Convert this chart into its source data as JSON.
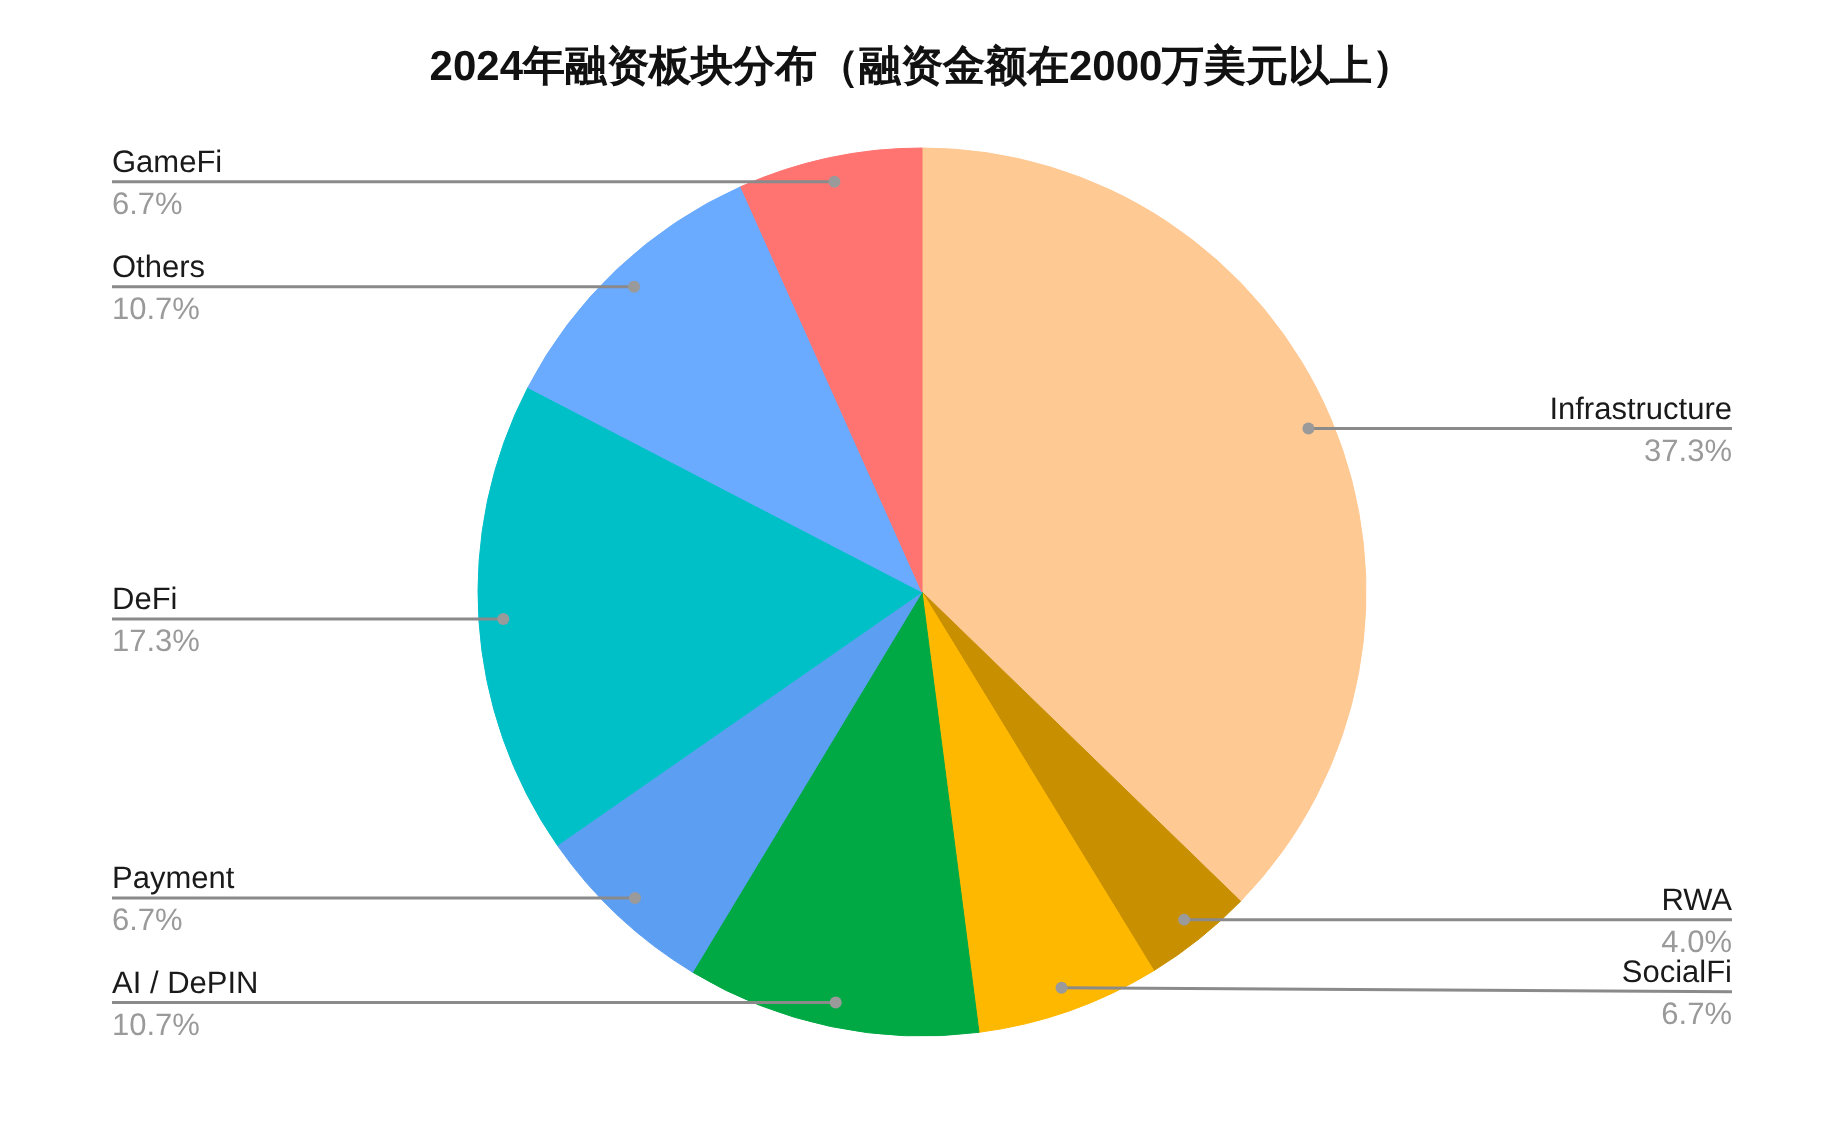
{
  "chart_data": {
    "type": "pie",
    "title": "2024年融资板块分布（融资金额在2000万美元以上）",
    "categories": [
      "Infrastructure",
      "RWA",
      "SocialFi",
      "AI / DePIN",
      "Payment",
      "DeFi",
      "Others",
      "GameFi"
    ],
    "values": [
      37.3,
      4.0,
      6.7,
      10.7,
      6.7,
      17.3,
      10.7,
      6.7
    ],
    "value_labels": [
      "37.3%",
      "4.0%",
      "6.7%",
      "10.7%",
      "6.7%",
      "17.3%",
      "10.7%",
      "6.7%"
    ],
    "colors": [
      "#ffc993",
      "#c88f00",
      "#ffb800",
      "#00a944",
      "#5b9ef2",
      "#00c0c7",
      "#6aaaff",
      "#ff7370"
    ]
  }
}
